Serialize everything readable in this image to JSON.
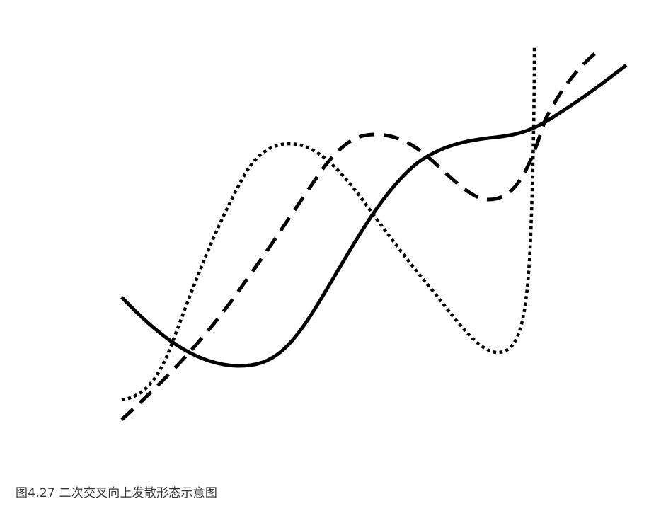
{
  "caption": "图4.27 二次交叉向上发散形态示意图",
  "colors": {
    "background": "#ffffff",
    "lines": "#000000",
    "caption_text": "#333333"
  },
  "curve_styles": {
    "solid": "solid",
    "dotted": "dotted",
    "dashed": "dashed"
  }
}
